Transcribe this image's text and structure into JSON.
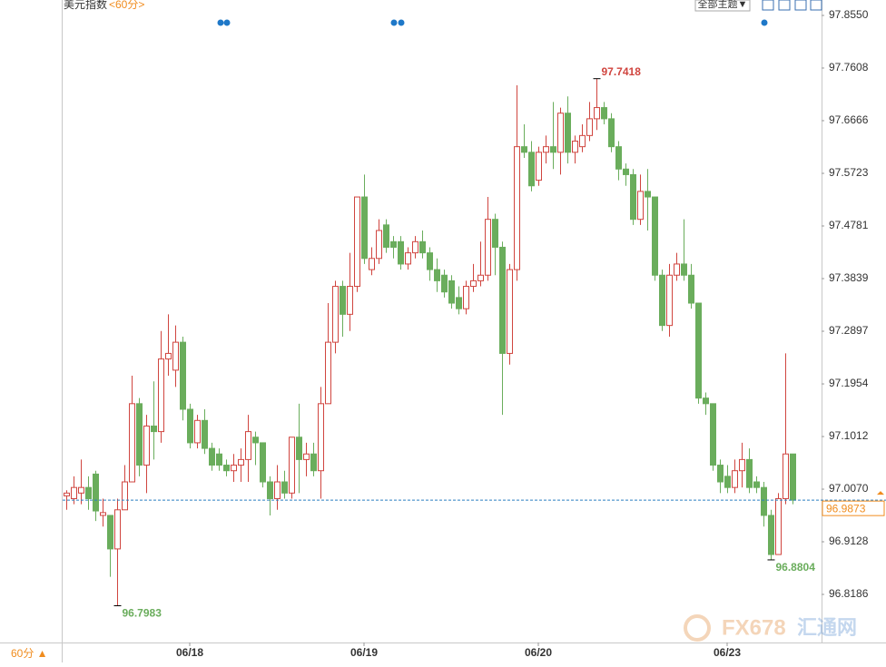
{
  "chart_data": {
    "type": "candlestick",
    "title": "美元指数",
    "subtitle": "<60分>",
    "up_color": "#d0453f",
    "down_color": "#6aad5c",
    "price_line_color": "#2b7fc0",
    "price_label_color": "#f08c1e",
    "ylim": [
      96.7325,
      97.8826
    ],
    "yticks": [
      {
        "value": 97.855,
        "label": "97.8550"
      },
      97.7608,
      97.6666,
      97.5723,
      97.4781,
      97.3839,
      97.2897,
      97.1954,
      97.1012,
      {
        "value": 97.007,
        "label": "97.0070"
      },
      96.9128,
      96.8186
    ],
    "xlim": [
      -0.5,
      104
    ],
    "xticks": [
      {
        "value": 17,
        "label": "06/18"
      },
      {
        "value": 41,
        "label": "06/19"
      },
      {
        "value": 65,
        "label": "06/20"
      },
      {
        "value": 91,
        "label": "06/23"
      }
    ],
    "grid": false,
    "open": [
      96.995,
      96.99,
      97.0,
      97.01,
      97.034,
      96.96,
      96.96,
      96.9,
      96.97,
      97.02,
      97.16,
      97.05,
      97.12,
      97.11,
      97.24,
      97.22,
      97.27,
      97.15,
      97.09,
      97.13,
      97.08,
      97.07,
      97.05,
      97.04,
      97.05,
      97.06,
      97.1,
      97.09,
      97.02,
      96.99,
      97.02,
      97.0,
      97.1,
      97.06,
      97.07,
      97.04,
      97.16,
      97.27,
      97.37,
      97.32,
      97.37,
      97.53,
      97.4,
      97.42,
      97.48,
      97.45,
      97.45,
      97.41,
      97.43,
      97.45,
      97.43,
      97.4,
      97.39,
      97.38,
      97.35,
      97.33,
      97.37,
      97.38,
      97.39,
      97.49,
      97.44,
      97.25,
      97.4,
      97.62,
      97.61,
      97.56,
      97.61,
      97.62,
      97.61,
      97.68,
      97.61,
      97.62,
      97.64,
      97.67,
      97.69,
      97.67,
      97.62,
      97.58,
      97.57,
      97.49,
      97.54,
      97.53,
      97.39,
      97.3,
      97.39,
      97.41,
      97.39,
      97.34,
      97.17,
      97.16,
      97.05,
      97.03,
      97.01,
      97.04,
      97.06,
      97.02,
      97.01,
      96.96,
      96.89,
      96.99,
      97.07
    ],
    "close": [
      97.0,
      97.01,
      97.01,
      96.99,
      96.968,
      96.965,
      96.9,
      96.97,
      97.02,
      97.16,
      97.05,
      97.12,
      97.11,
      97.24,
      97.25,
      97.27,
      97.15,
      97.09,
      97.13,
      97.08,
      97.05,
      97.05,
      97.04,
      97.05,
      97.06,
      97.11,
      97.09,
      97.02,
      96.99,
      97.02,
      97.0,
      97.1,
      97.06,
      97.07,
      97.04,
      97.16,
      97.27,
      97.37,
      97.32,
      97.37,
      97.53,
      97.42,
      97.42,
      97.47,
      97.44,
      97.44,
      97.41,
      97.43,
      97.45,
      97.43,
      97.4,
      97.38,
      97.36,
      97.34,
      97.33,
      97.37,
      97.38,
      97.39,
      97.49,
      97.44,
      97.25,
      97.4,
      97.62,
      97.61,
      97.55,
      97.61,
      97.62,
      97.61,
      97.68,
      97.61,
      97.63,
      97.64,
      97.67,
      97.69,
      97.67,
      97.62,
      97.58,
      97.57,
      97.49,
      97.54,
      97.53,
      97.39,
      97.3,
      97.39,
      97.41,
      97.39,
      97.34,
      97.17,
      97.16,
      97.05,
      97.02,
      97.01,
      97.04,
      97.06,
      97.01,
      97.01,
      96.96,
      96.89,
      96.99,
      97.07,
      96.9873
    ],
    "high": [
      97.005,
      97.03,
      97.06,
      97.03,
      97.04,
      96.99,
      96.96,
      96.99,
      97.05,
      97.21,
      97.17,
      97.14,
      97.2,
      97.29,
      97.32,
      97.3,
      97.28,
      97.16,
      97.14,
      97.15,
      97.09,
      97.08,
      97.06,
      97.07,
      97.08,
      97.14,
      97.11,
      97.09,
      97.03,
      97.05,
      97.04,
      97.1,
      97.16,
      97.09,
      97.09,
      97.19,
      97.34,
      97.38,
      97.38,
      97.43,
      97.53,
      97.57,
      97.44,
      97.49,
      97.49,
      97.46,
      97.46,
      97.44,
      97.46,
      97.47,
      97.44,
      97.42,
      97.4,
      97.39,
      97.37,
      97.38,
      97.41,
      97.45,
      97.53,
      97.5,
      97.45,
      97.41,
      97.73,
      97.66,
      97.63,
      97.62,
      97.64,
      97.7,
      97.69,
      97.71,
      97.64,
      97.66,
      97.7,
      97.7418,
      97.7,
      97.68,
      97.63,
      97.59,
      97.58,
      97.57,
      97.58,
      97.53,
      97.4,
      97.41,
      97.43,
      97.49,
      97.41,
      97.34,
      97.18,
      97.16,
      97.06,
      97.05,
      97.06,
      97.09,
      97.08,
      97.03,
      97.02,
      96.97,
      97.0,
      97.25,
      97.07
    ],
    "low": [
      96.97,
      96.98,
      96.98,
      96.97,
      96.95,
      96.94,
      96.85,
      96.7983,
      96.97,
      97.02,
      97.03,
      97.0,
      97.06,
      97.09,
      97.21,
      97.19,
      97.13,
      97.08,
      97.08,
      97.07,
      97.04,
      97.04,
      97.03,
      97.02,
      97.02,
      97.02,
      97.05,
      97.01,
      96.96,
      96.97,
      96.99,
      96.99,
      97.0,
      97.03,
      97.03,
      96.99,
      97.16,
      97.25,
      97.28,
      97.29,
      97.36,
      97.41,
      97.39,
      97.41,
      97.43,
      97.42,
      97.4,
      97.4,
      97.42,
      97.42,
      97.38,
      97.36,
      97.35,
      97.33,
      97.32,
      97.32,
      97.36,
      97.37,
      97.38,
      97.39,
      97.14,
      97.23,
      97.38,
      97.6,
      97.54,
      97.55,
      97.59,
      97.58,
      97.57,
      97.59,
      97.59,
      97.61,
      97.63,
      97.65,
      97.66,
      97.61,
      97.56,
      97.55,
      97.48,
      97.48,
      97.47,
      97.38,
      97.29,
      97.28,
      97.38,
      97.38,
      97.33,
      97.16,
      97.14,
      97.04,
      97.0,
      97.0,
      97.0,
      97.01,
      97.0,
      97.0,
      96.94,
      96.8804,
      96.89,
      96.98,
      96.98
    ]
  },
  "toolbar": {
    "theme_button": "全部主题▼"
  },
  "footer": {
    "period": "60分 ▲"
  },
  "watermark": {
    "brand": "FX678",
    "site": "汇通网"
  }
}
